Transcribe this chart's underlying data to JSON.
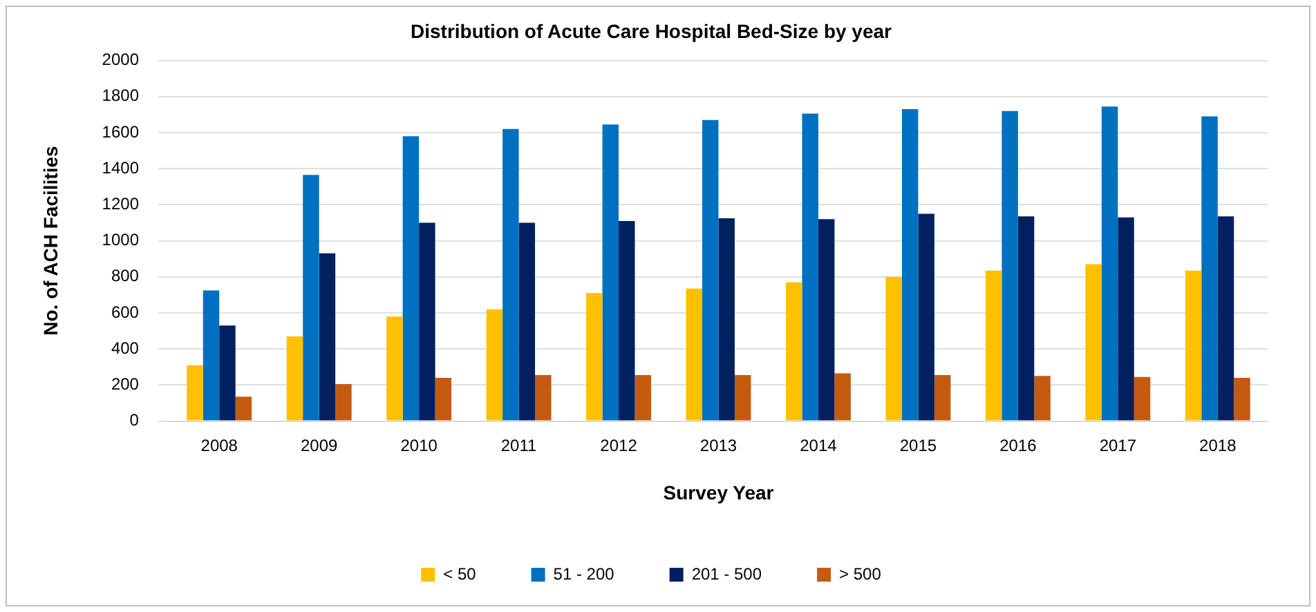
{
  "chart_data": {
    "type": "bar",
    "title": "Distribution of Acute Care Hospital Bed-Size by year",
    "xlabel": "Survey Year",
    "ylabel": "No. of ACH Facilities",
    "categories": [
      "2008",
      "2009",
      "2010",
      "2011",
      "2012",
      "2013",
      "2014",
      "2015",
      "2016",
      "2017",
      "2018"
    ],
    "series": [
      {
        "name": "< 50",
        "color": "#ffc000",
        "values": [
          310,
          470,
          580,
          620,
          710,
          735,
          770,
          800,
          835,
          870,
          835
        ]
      },
      {
        "name": "51 - 200",
        "color": "#0070c0",
        "values": [
          725,
          1365,
          1580,
          1620,
          1645,
          1670,
          1705,
          1730,
          1720,
          1745,
          1690
        ]
      },
      {
        "name": "201 - 500",
        "color": "#002060",
        "values": [
          530,
          930,
          1100,
          1100,
          1110,
          1125,
          1120,
          1150,
          1135,
          1130,
          1135
        ]
      },
      {
        "name": "> 500",
        "color": "#c55a11",
        "values": [
          135,
          205,
          240,
          255,
          255,
          255,
          265,
          255,
          250,
          245,
          240
        ]
      }
    ],
    "ylim": [
      0,
      2000
    ],
    "yticks": [
      0,
      200,
      400,
      600,
      800,
      1000,
      1200,
      1400,
      1600,
      1800,
      2000
    ],
    "grid": "y",
    "legend": "bottom"
  }
}
